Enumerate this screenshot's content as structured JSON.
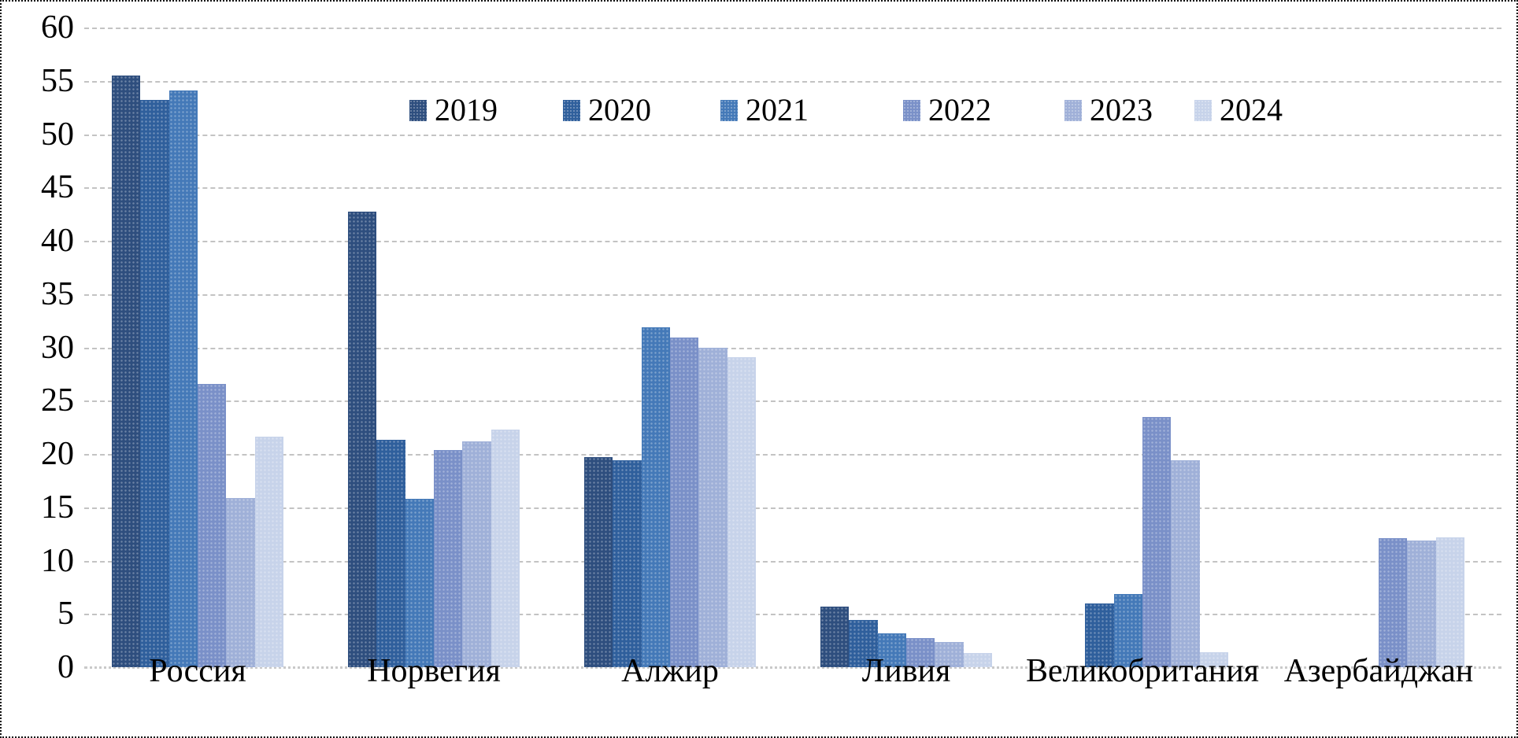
{
  "figure": {
    "background_color": "#ffffff",
    "border_color": "#111111",
    "gridline_color": "#c3c3c3"
  },
  "chart_data": {
    "type": "bar",
    "title": "",
    "xlabel": "",
    "ylabel": "",
    "categories": [
      "Россия",
      "Норвегия",
      "Алжир",
      "Ливия",
      "Великобритания",
      "Азербайджан"
    ],
    "series": [
      {
        "name": "2019",
        "color": "#2E4E7E",
        "values": [
          55.5,
          42.7,
          19.7,
          5.7,
          null,
          null
        ]
      },
      {
        "name": "2020",
        "color": "#2F5F9C",
        "values": [
          53.2,
          21.3,
          19.4,
          4.4,
          6.0,
          null
        ]
      },
      {
        "name": "2021",
        "color": "#4479B8",
        "values": [
          54.1,
          15.8,
          31.9,
          3.2,
          6.9,
          null
        ]
      },
      {
        "name": "2022",
        "color": "#7A90C8",
        "values": [
          26.6,
          20.4,
          30.9,
          2.7,
          23.5,
          12.1
        ]
      },
      {
        "name": "2023",
        "color": "#9FB0D8",
        "values": [
          15.9,
          21.2,
          30.0,
          2.4,
          19.4,
          11.9
        ]
      },
      {
        "name": "2024",
        "color": "#C7D3EA",
        "values": [
          21.6,
          22.3,
          29.1,
          1.3,
          1.4,
          12.2
        ]
      }
    ],
    "ylim": [
      0,
      60
    ],
    "ytick_step": 5,
    "grid": "horizontal-dashed",
    "legend_position": "top"
  }
}
